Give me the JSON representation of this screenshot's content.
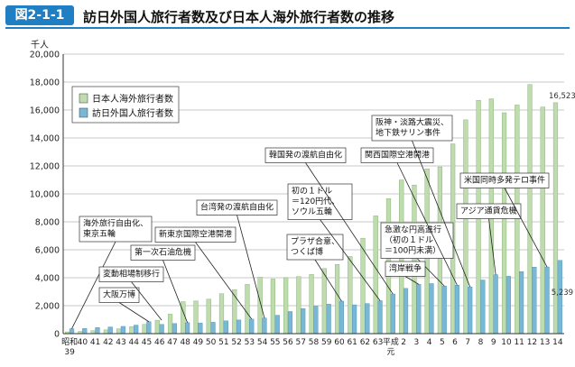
{
  "figure": {
    "number": "図2-1-1",
    "title": "訪日外国人旅行者数及び日本人海外旅行者数の推移"
  },
  "chart_data": {
    "type": "bar",
    "ylabel": "千人",
    "ylim": [
      0,
      20000
    ],
    "yticks": [
      "0",
      "2,000",
      "4,000",
      "6,000",
      "8,000",
      "10,000",
      "12,000",
      "14,000",
      "16,000",
      "18,000",
      "20,000"
    ],
    "grid": true,
    "legend_position": "top-left",
    "categories": [
      "昭和39",
      "40",
      "41",
      "42",
      "43",
      "44",
      "45",
      "46",
      "47",
      "48",
      "49",
      "50",
      "51",
      "52",
      "53",
      "54",
      "55",
      "56",
      "57",
      "58",
      "59",
      "60",
      "61",
      "62",
      "63",
      "平成元",
      "2",
      "3",
      "4",
      "5",
      "6",
      "7",
      "8",
      "9",
      "10",
      "11",
      "12",
      "13",
      "14"
    ],
    "category_ticks": [
      {
        "line1": "昭和",
        "line2": "39"
      },
      {
        "line1": "40"
      },
      {
        "line1": "41"
      },
      {
        "line1": "42"
      },
      {
        "line1": "43"
      },
      {
        "line1": "44"
      },
      {
        "line1": "45"
      },
      {
        "line1": "46"
      },
      {
        "line1": "47"
      },
      {
        "line1": "48"
      },
      {
        "line1": "49"
      },
      {
        "line1": "50"
      },
      {
        "line1": "51"
      },
      {
        "line1": "52"
      },
      {
        "line1": "53"
      },
      {
        "line1": "54"
      },
      {
        "line1": "55"
      },
      {
        "line1": "56"
      },
      {
        "line1": "57"
      },
      {
        "line1": "58"
      },
      {
        "line1": "59"
      },
      {
        "line1": "60"
      },
      {
        "line1": "61"
      },
      {
        "line1": "62"
      },
      {
        "line1": "63"
      },
      {
        "line1": "平成",
        "line2": "元"
      },
      {
        "line1": "2"
      },
      {
        "line1": "3"
      },
      {
        "line1": "4"
      },
      {
        "line1": "5"
      },
      {
        "line1": "6"
      },
      {
        "line1": "7"
      },
      {
        "line1": "8"
      },
      {
        "line1": "9"
      },
      {
        "line1": "10"
      },
      {
        "line1": "11"
      },
      {
        "line1": "12"
      },
      {
        "line1": "13"
      },
      {
        "line1": "14"
      }
    ],
    "series": [
      {
        "name": "日本人海外旅行者数",
        "color": "#bfdcae",
        "values": [
          128,
          159,
          212,
          268,
          344,
          493,
          663,
          961,
          1392,
          2289,
          2336,
          2466,
          2853,
          3151,
          3525,
          4038,
          3909,
          4006,
          4086,
          4233,
          4659,
          4948,
          5516,
          6829,
          8427,
          9662,
          10997,
          10634,
          11791,
          11934,
          13579,
          15298,
          16695,
          16803,
          15806,
          16358,
          17819,
          16216,
          16523
        ]
      },
      {
        "name": "訪日外国人旅行者数",
        "color": "#78b7d6",
        "values": [
          353,
          367,
          433,
          477,
          519,
          609,
          854,
          661,
          724,
          785,
          764,
          812,
          915,
          979,
          1039,
          1113,
          1317,
          1583,
          1793,
          1968,
          2110,
          2327,
          2062,
          2155,
          2355,
          2835,
          3236,
          3533,
          3582,
          3410,
          3468,
          3345,
          3837,
          4218,
          4106,
          4438,
          4757,
          4772,
          5239
        ]
      }
    ],
    "data_labels": [
      {
        "series": 0,
        "index": 38,
        "text": "16,523"
      },
      {
        "series": 1,
        "index": 38,
        "text": "5,239"
      }
    ],
    "annotations": [
      {
        "lines": [
          "海外旅行自由化、",
          "東京五輪"
        ],
        "index": 0,
        "target_value": 353
      },
      {
        "lines": [
          "大阪万博"
        ],
        "index": 6,
        "target_value": 854
      },
      {
        "lines": [
          "変動相場制移行"
        ],
        "index": 7,
        "target_value": 961
      },
      {
        "lines": [
          "第一次石油危機"
        ],
        "index": 9,
        "target_value": 785
      },
      {
        "lines": [
          "新東京国際空港開港"
        ],
        "index": 14,
        "target_value": 1039
      },
      {
        "lines": [
          "台湾発の渡航自由化"
        ],
        "index": 15,
        "target_value": 1113
      },
      {
        "lines": [
          "プラザ合意、",
          "つくば博"
        ],
        "index": 21,
        "target_value": 2327
      },
      {
        "lines": [
          "初の１ドル",
          "＝120円代、",
          "ソウル五輪"
        ],
        "index": 24,
        "target_value": 2355
      },
      {
        "lines": [
          "韓国発の渡航自由化"
        ],
        "index": 25,
        "target_value": 2835
      },
      {
        "lines": [
          "急激な円高進行",
          "（初の１ドル",
          "＝100円未満）"
        ],
        "index": 29,
        "target_value": 3410
      },
      {
        "lines": [
          "湾岸戦争"
        ],
        "index": 27,
        "target_value": 3533
      },
      {
        "lines": [
          "関西国際空港開港"
        ],
        "index": 30,
        "target_value": 3468
      },
      {
        "lines": [
          "阪神・淡路大震災、",
          "地下鉄サリン事件"
        ],
        "index": 31,
        "target_value": 3345
      },
      {
        "lines": [
          "アジア通貨危機"
        ],
        "index": 33,
        "target_value": 4218
      },
      {
        "lines": [
          "米国同時多発テロ事件"
        ],
        "index": 37,
        "target_value": 4772
      }
    ]
  }
}
